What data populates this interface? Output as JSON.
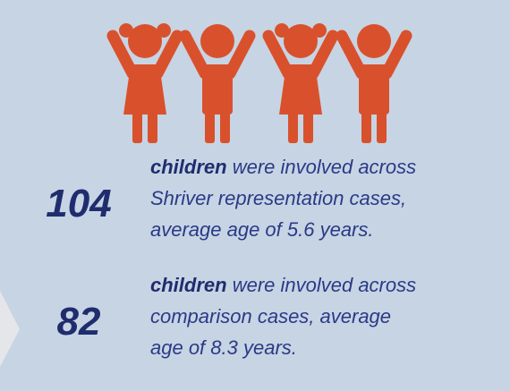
{
  "stats": [
    {
      "number": "104",
      "lead": "children",
      "lines": [
        " were involved across",
        "Shriver representation cases,",
        "average age of 5.6 years."
      ]
    },
    {
      "number": "82",
      "lead": "children",
      "lines": [
        " were involved across",
        "comparison cases, average",
        "age of 8.3 years."
      ]
    }
  ]
}
